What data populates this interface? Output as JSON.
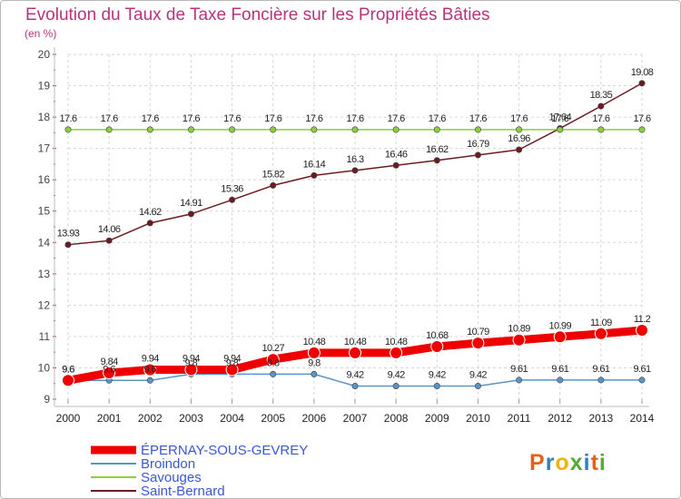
{
  "chart_data": {
    "type": "line",
    "title": "Evolution du Taux de Taxe Foncière sur les Propriétés Bâties",
    "subtitle": "(en %)",
    "xlabel": "",
    "ylabel": "",
    "ylim": [
      9,
      20
    ],
    "yticks": [
      "9",
      "10",
      "11",
      "12",
      "13",
      "14",
      "15",
      "16",
      "17",
      "18",
      "19",
      "20"
    ],
    "x": [
      "2000",
      "2001",
      "2002",
      "2003",
      "2004",
      "2005",
      "2006",
      "2007",
      "2008",
      "2009",
      "2010",
      "2011",
      "2012",
      "2013",
      "2014"
    ],
    "series": [
      {
        "name": "ÉPERNAY-SOUS-GEVREY",
        "color": "#ee0000",
        "values": [
          9.6,
          9.84,
          9.94,
          9.94,
          9.94,
          10.27,
          10.48,
          10.48,
          10.48,
          10.68,
          10.79,
          10.89,
          10.99,
          11.09,
          11.2
        ],
        "labels": [
          "9.6",
          "9.84",
          "9.94",
          "9.94",
          "9.94",
          "10.27",
          "10.48",
          "10.48",
          "10.48",
          "10.68",
          "10.79",
          "10.89",
          "10.99",
          "11.09",
          "11.2"
        ]
      },
      {
        "name": "Broindon",
        "color": "#5b93c4",
        "values": [
          9.6,
          9.6,
          9.6,
          9.8,
          9.8,
          9.8,
          9.8,
          9.42,
          9.42,
          9.42,
          9.42,
          9.61,
          9.61,
          9.61,
          9.61
        ],
        "labels": [
          "9.6",
          "9.6",
          "9.6",
          "9.8",
          "9.8",
          "9.8",
          "9.8",
          "9.42",
          "9.42",
          "9.42",
          "9.42",
          "9.61",
          "9.61",
          "9.61",
          "9.61"
        ]
      },
      {
        "name": "Savouges",
        "color": "#8ccf3c",
        "values": [
          17.6,
          17.6,
          17.6,
          17.6,
          17.6,
          17.6,
          17.6,
          17.6,
          17.6,
          17.6,
          17.6,
          17.6,
          17.6,
          17.6,
          17.6
        ],
        "labels": [
          "17.6",
          "17.6",
          "17.6",
          "17.6",
          "17.6",
          "17.6",
          "17.6",
          "17.6",
          "17.6",
          "17.6",
          "17.6",
          "17.6",
          "17.6",
          "17.6",
          "17.6"
        ]
      },
      {
        "name": "Saint-Bernard",
        "color": "#6b1c22",
        "values": [
          13.93,
          14.06,
          14.62,
          14.91,
          15.36,
          15.82,
          16.14,
          16.3,
          16.46,
          16.62,
          16.79,
          16.96,
          17.64,
          18.35,
          19.08
        ],
        "labels": [
          "13.93",
          "14.06",
          "14.62",
          "14.91",
          "15.36",
          "15.82",
          "16.14",
          "16.3",
          "16.46",
          "16.62",
          "16.79",
          "16.96",
          "17.64",
          "18.35",
          "19.08"
        ]
      }
    ]
  },
  "logo": {
    "text": "Proxiti",
    "colors": [
      "#e2621b",
      "#2f7fc1",
      "#f0b400",
      "#54a938",
      "#2f7fc1",
      "#e2621b",
      "#54a938"
    ]
  }
}
